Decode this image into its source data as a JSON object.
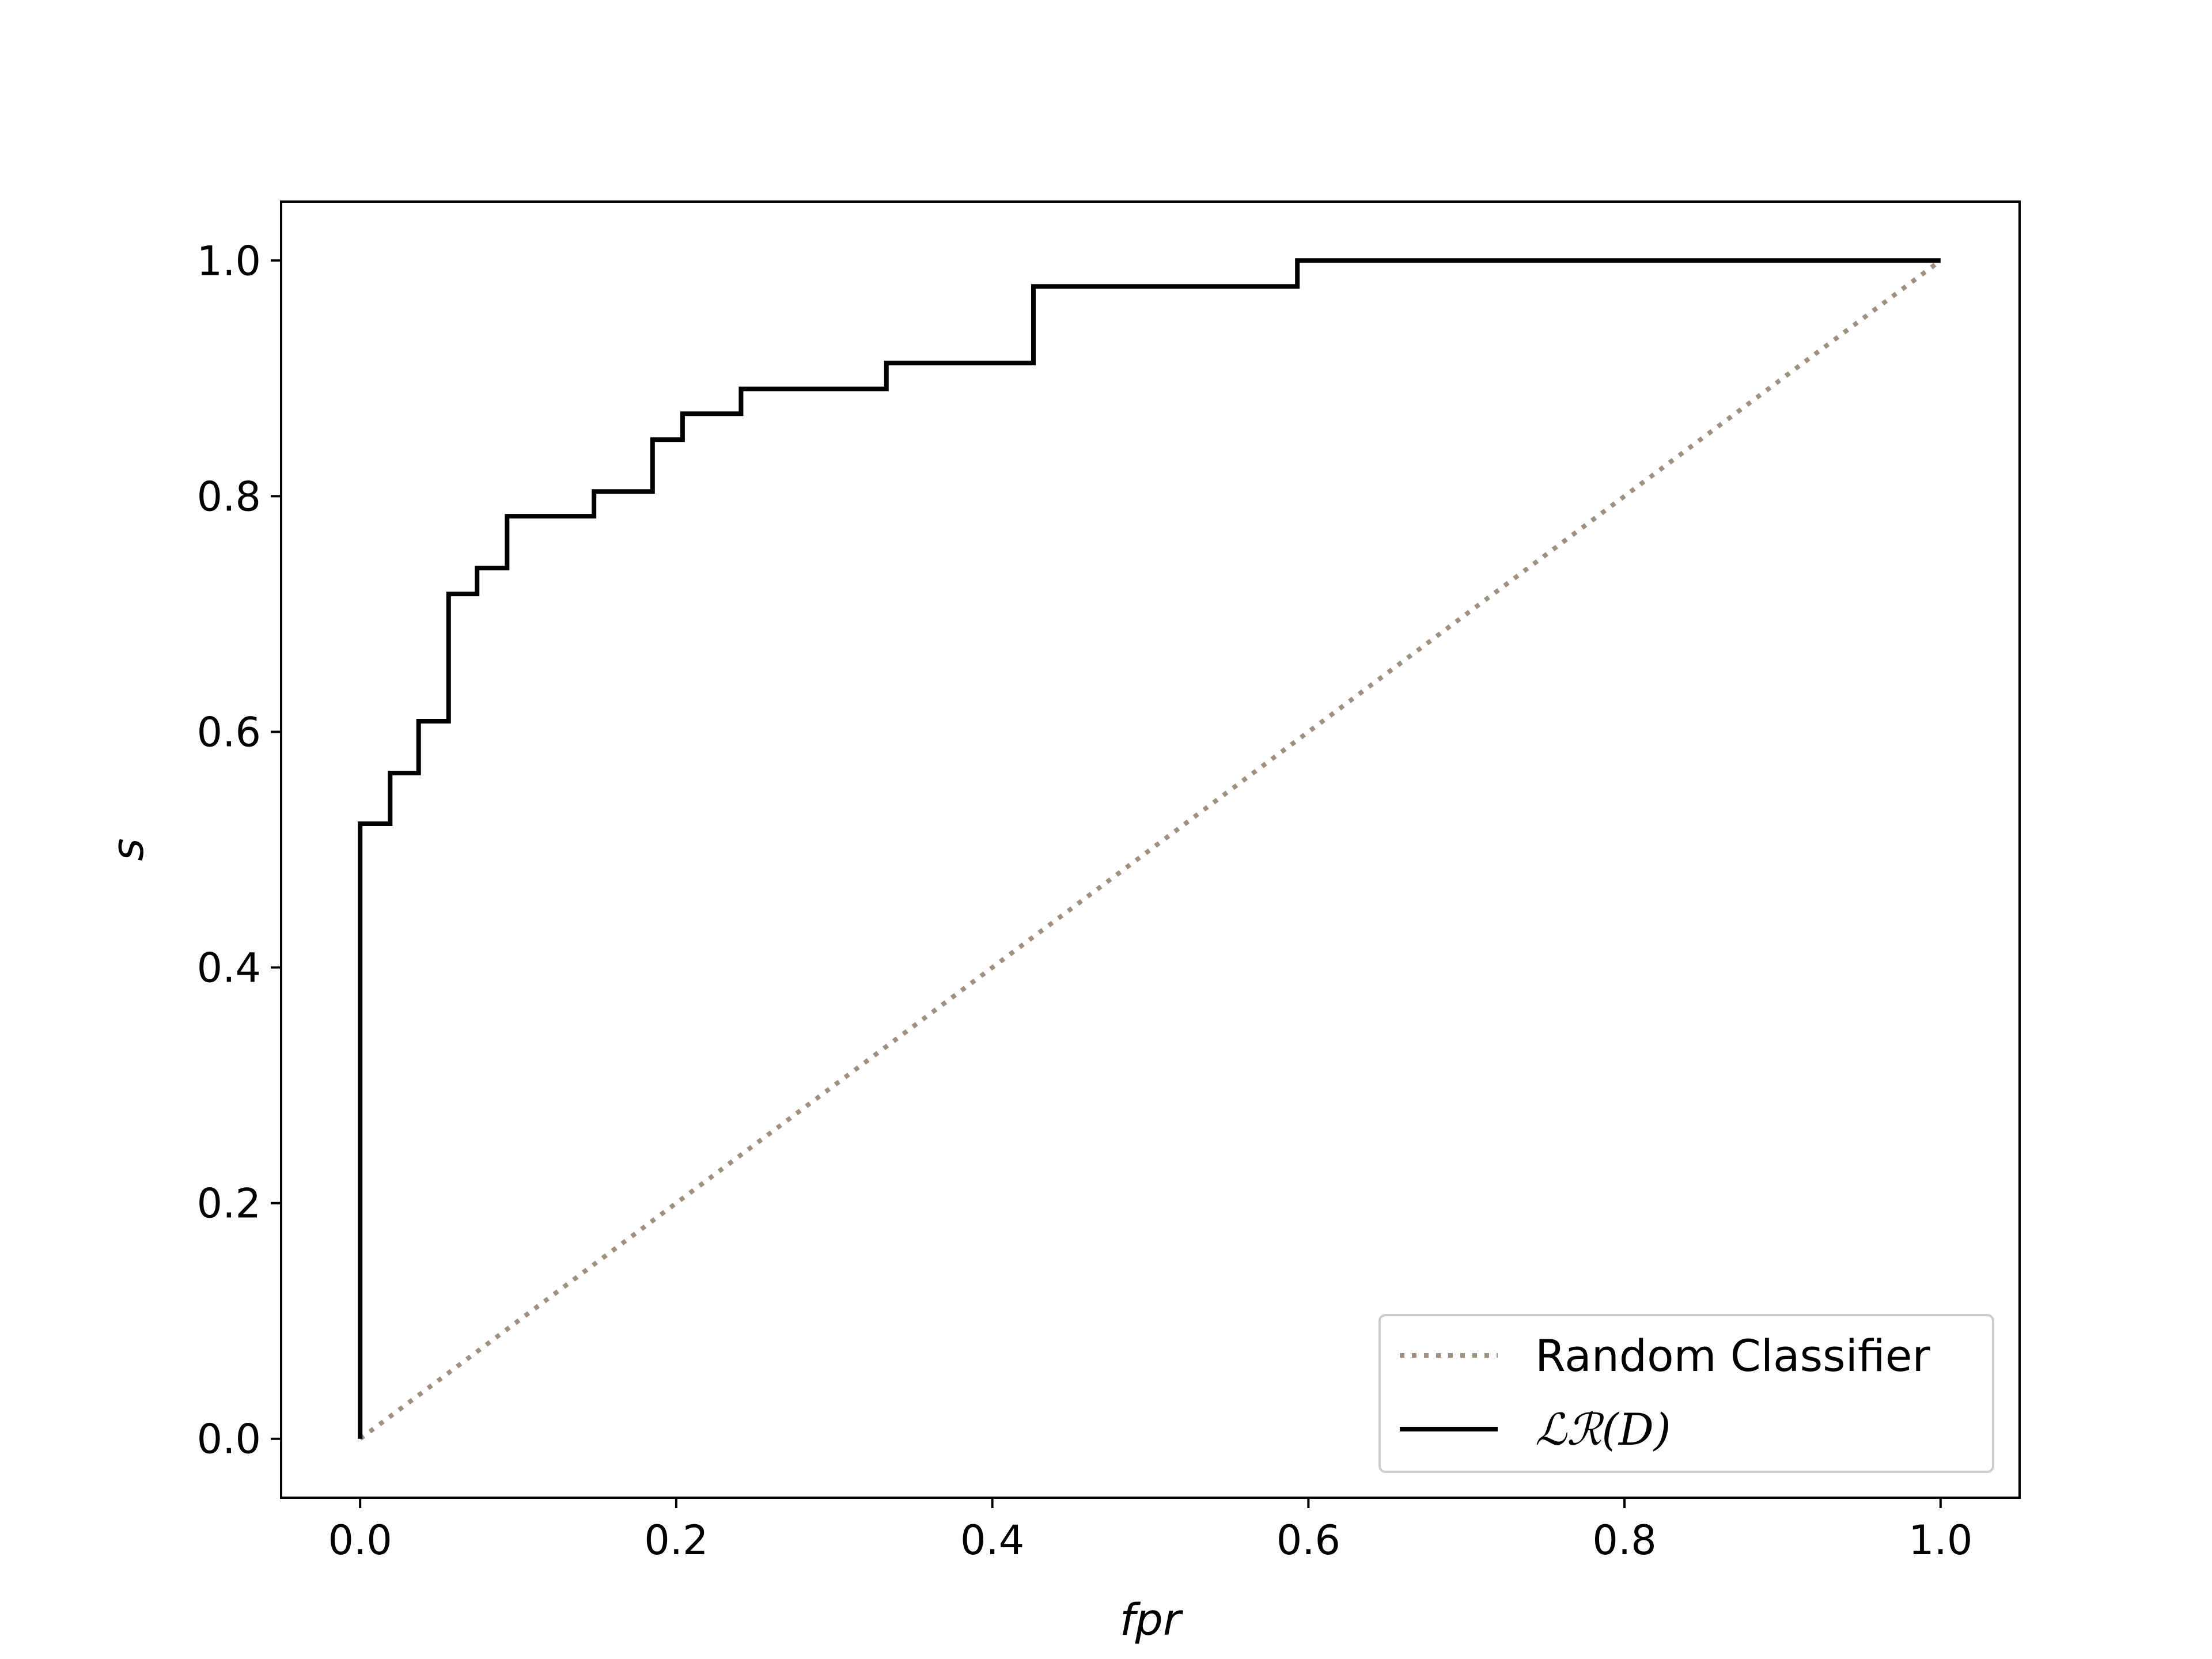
{
  "chart_data": {
    "type": "line",
    "xlabel": "fpr",
    "ylabel": "s",
    "xlim": [
      -0.05,
      1.05
    ],
    "ylim": [
      -0.05,
      1.05
    ],
    "xticks": [
      "0.0",
      "0.2",
      "0.4",
      "0.6",
      "0.8",
      "1.0"
    ],
    "yticks": [
      "0.0",
      "0.2",
      "0.4",
      "0.6",
      "0.8",
      "1.0"
    ],
    "grid": false,
    "legend_position": "lower-right",
    "series": [
      {
        "name": "Random Classifier",
        "style": "dotted",
        "color": "#a09080",
        "x": [
          0.0,
          1.0
        ],
        "y": [
          0.0,
          1.0
        ]
      },
      {
        "name": "ℒℛ(D)",
        "style": "step",
        "color": "#000000",
        "x": [
          0.0,
          0.0,
          0.019,
          0.019,
          0.037,
          0.037,
          0.056,
          0.056,
          0.074,
          0.074,
          0.093,
          0.093,
          0.148,
          0.148,
          0.185,
          0.185,
          0.204,
          0.204,
          0.241,
          0.241,
          0.333,
          0.333,
          0.426,
          0.426,
          0.593,
          0.593,
          1.0
        ],
        "y": [
          0.0,
          0.522,
          0.522,
          0.565,
          0.565,
          0.609,
          0.609,
          0.717,
          0.717,
          0.739,
          0.739,
          0.783,
          0.783,
          0.804,
          0.804,
          0.848,
          0.848,
          0.87,
          0.87,
          0.891,
          0.891,
          0.913,
          0.913,
          0.978,
          0.978,
          1.0,
          1.0
        ]
      }
    ]
  }
}
